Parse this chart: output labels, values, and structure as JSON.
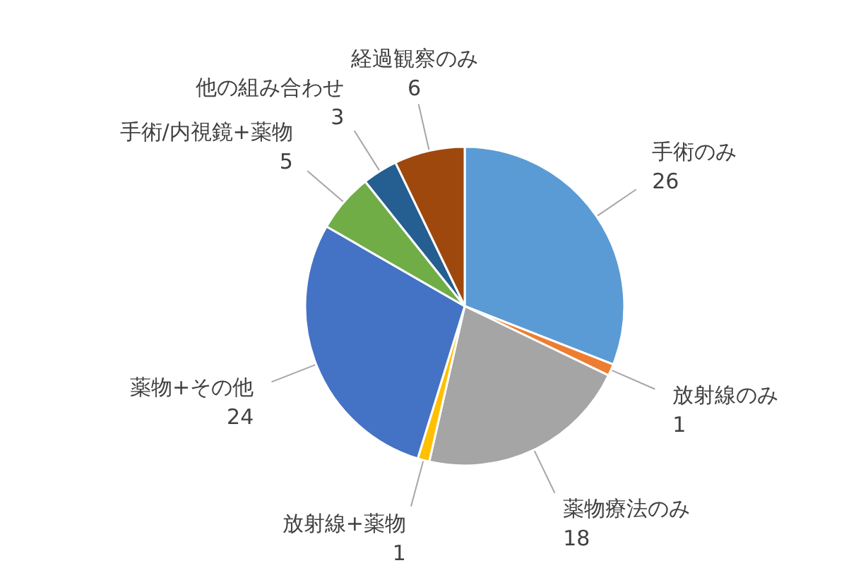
{
  "chart_data": {
    "type": "pie",
    "categories": [
      "手術のみ",
      "放射線のみ",
      "薬物療法のみ",
      "放射線+薬物",
      "薬物+その他",
      "手術/内視鏡+薬物",
      "他の組み合わせ",
      "経過観察のみ"
    ],
    "values": [
      26,
      1,
      18,
      1,
      24,
      5,
      3,
      6
    ],
    "colors": [
      "#5b9bd5",
      "#ed7d31",
      "#a5a5a5",
      "#ffc000",
      "#4472c4",
      "#70ad47",
      "#255e91",
      "#9e480e"
    ],
    "data_labels": true
  }
}
